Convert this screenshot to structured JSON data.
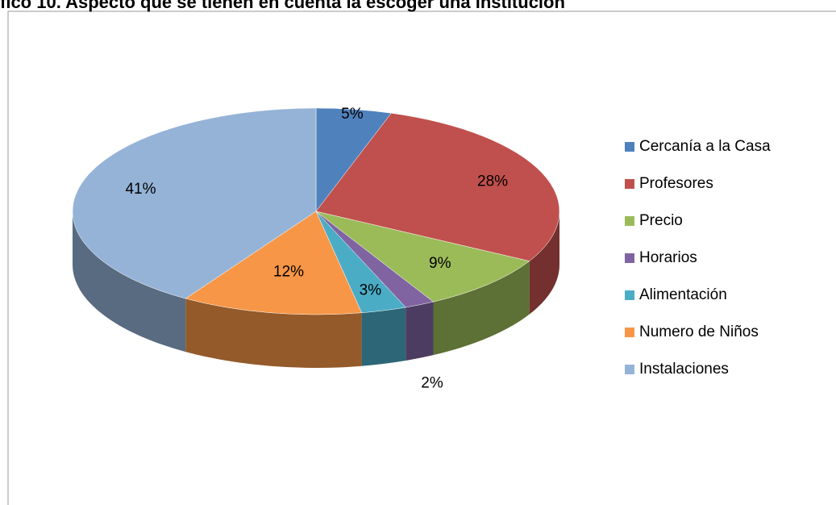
{
  "chart_data": {
    "type": "pie3d",
    "title": "fico 10. Aspecto que se tienen en cuenta la escoger una institución",
    "categories": [
      "Cercanía a  la Casa",
      "Profesores",
      "Precio",
      "Horarios",
      "Alimentación",
      "Numero de Niños",
      "Instalaciones"
    ],
    "values": [
      5,
      28,
      9,
      2,
      3,
      12,
      41
    ],
    "value_labels": [
      "5%",
      "28%",
      "9%",
      "2%",
      "3%",
      "12%",
      "41%"
    ],
    "colors": [
      "#4f81bd",
      "#c0504d",
      "#9bbb59",
      "#8064a2",
      "#4bacc6",
      "#f79646",
      "#95b3d7"
    ],
    "legend": "right"
  }
}
